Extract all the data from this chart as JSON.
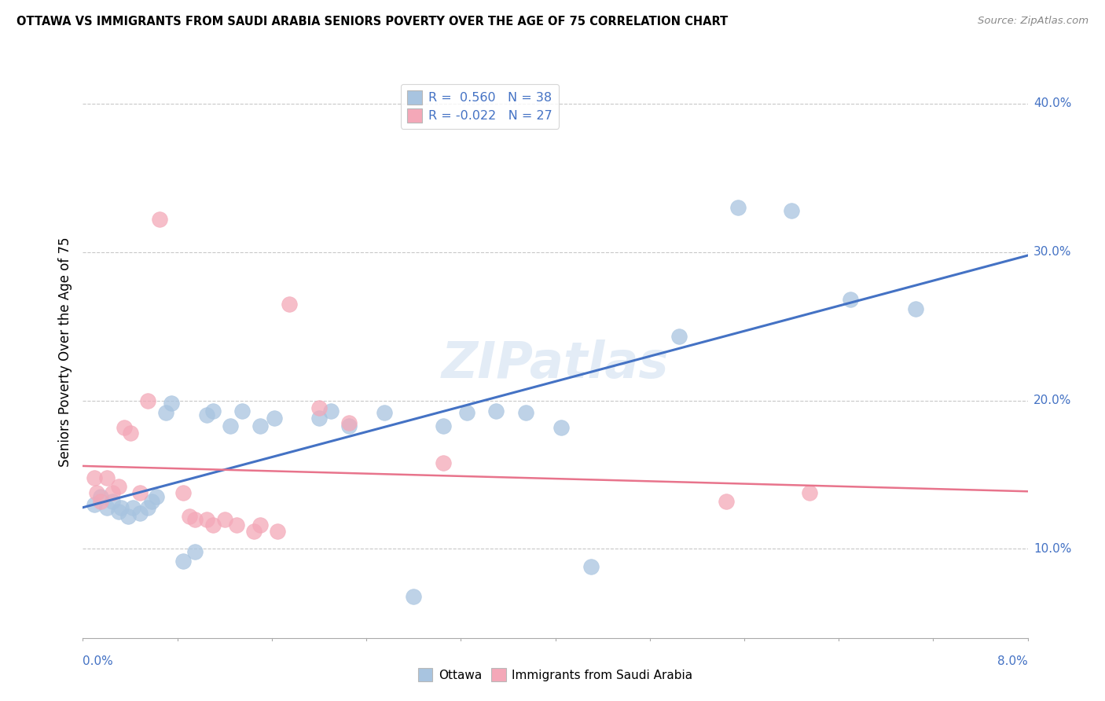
{
  "title": "OTTAWA VS IMMIGRANTS FROM SAUDI ARABIA SENIORS POVERTY OVER THE AGE OF 75 CORRELATION CHART",
  "source": "Source: ZipAtlas.com",
  "ylabel": "Seniors Poverty Over the Age of 75",
  "xmin": 0.0,
  "xmax": 0.08,
  "ymin": 0.04,
  "ymax": 0.425,
  "yticks": [
    0.1,
    0.2,
    0.3,
    0.4
  ],
  "ytick_labels": [
    "10.0%",
    "20.0%",
    "30.0%",
    "40.0%"
  ],
  "ottawa_R": 0.56,
  "ottawa_N": 38,
  "saudi_R": -0.022,
  "saudi_N": 27,
  "ottawa_dot_color": "#a8c4e0",
  "saudi_dot_color": "#f4a8b8",
  "ottawa_line_color": "#4472c4",
  "saudi_line_color": "#e8748c",
  "watermark": "ZIPatlas",
  "ottawa_points": [
    [
      0.001,
      0.13
    ],
    [
      0.0015,
      0.135
    ],
    [
      0.002,
      0.128
    ],
    [
      0.0025,
      0.132
    ],
    [
      0.003,
      0.125
    ],
    [
      0.0032,
      0.128
    ],
    [
      0.0038,
      0.122
    ],
    [
      0.0042,
      0.128
    ],
    [
      0.0048,
      0.124
    ],
    [
      0.0055,
      0.128
    ],
    [
      0.0058,
      0.132
    ],
    [
      0.0062,
      0.135
    ],
    [
      0.007,
      0.192
    ],
    [
      0.0075,
      0.198
    ],
    [
      0.0085,
      0.092
    ],
    [
      0.0095,
      0.098
    ],
    [
      0.0105,
      0.19
    ],
    [
      0.011,
      0.193
    ],
    [
      0.0125,
      0.183
    ],
    [
      0.0135,
      0.193
    ],
    [
      0.015,
      0.183
    ],
    [
      0.0162,
      0.188
    ],
    [
      0.02,
      0.188
    ],
    [
      0.021,
      0.193
    ],
    [
      0.0225,
      0.183
    ],
    [
      0.0255,
      0.192
    ],
    [
      0.028,
      0.068
    ],
    [
      0.0305,
      0.183
    ],
    [
      0.0325,
      0.192
    ],
    [
      0.035,
      0.193
    ],
    [
      0.0375,
      0.192
    ],
    [
      0.0405,
      0.182
    ],
    [
      0.043,
      0.088
    ],
    [
      0.0505,
      0.243
    ],
    [
      0.0555,
      0.33
    ],
    [
      0.06,
      0.328
    ],
    [
      0.065,
      0.268
    ],
    [
      0.0705,
      0.262
    ]
  ],
  "saudi_points": [
    [
      0.001,
      0.148
    ],
    [
      0.0012,
      0.138
    ],
    [
      0.0015,
      0.132
    ],
    [
      0.002,
      0.148
    ],
    [
      0.0025,
      0.138
    ],
    [
      0.003,
      0.142
    ],
    [
      0.0035,
      0.182
    ],
    [
      0.004,
      0.178
    ],
    [
      0.0048,
      0.138
    ],
    [
      0.0055,
      0.2
    ],
    [
      0.0065,
      0.322
    ],
    [
      0.0085,
      0.138
    ],
    [
      0.009,
      0.122
    ],
    [
      0.0095,
      0.12
    ],
    [
      0.0105,
      0.12
    ],
    [
      0.011,
      0.116
    ],
    [
      0.012,
      0.12
    ],
    [
      0.013,
      0.116
    ],
    [
      0.0145,
      0.112
    ],
    [
      0.015,
      0.116
    ],
    [
      0.0165,
      0.112
    ],
    [
      0.0175,
      0.265
    ],
    [
      0.02,
      0.195
    ],
    [
      0.0225,
      0.185
    ],
    [
      0.0305,
      0.158
    ],
    [
      0.0545,
      0.132
    ],
    [
      0.0615,
      0.138
    ]
  ]
}
